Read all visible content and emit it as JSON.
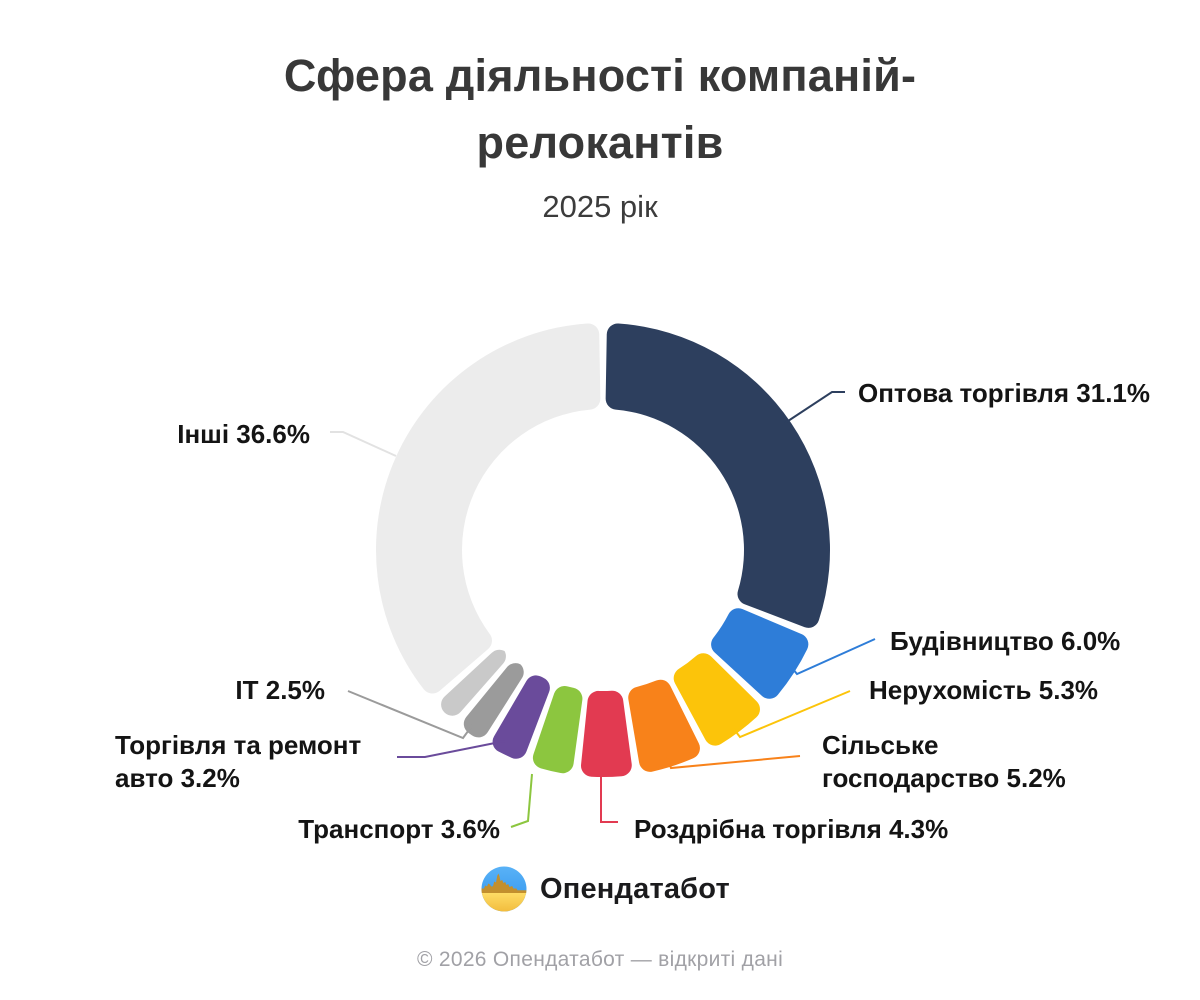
{
  "header": {
    "title": "Сфера діяльності компаній-релокантів",
    "subtitle": "2025 рік"
  },
  "chart_data": {
    "type": "pie",
    "variant": "donut",
    "title": "Сфера діяльності компаній-релокантів",
    "subtitle": "2025 рік",
    "unit": "%",
    "start_angle_deg": 0,
    "direction": "clockwise",
    "legend_position": "callout-labels",
    "segments": [
      {
        "label": "Оптова торгівля",
        "value": 31.1,
        "display": "Оптова торгівля 31.1%",
        "color": "#2d3f5e",
        "label_visible": true
      },
      {
        "label": "Будівництво",
        "value": 6.0,
        "display": "Будівництво 6.0%",
        "color": "#2e7dd8",
        "label_visible": true
      },
      {
        "label": "Нерухомість",
        "value": 5.3,
        "display": "Нерухомість 5.3%",
        "color": "#fcc40a",
        "label_visible": true
      },
      {
        "label": "Сільське господарство",
        "value": 5.2,
        "display": "Сільське господарство 5.2%",
        "color": "#f8821a",
        "label_visible": true
      },
      {
        "label": "Роздрібна торгівля",
        "value": 4.3,
        "display": "Роздрібна торгівля 4.3%",
        "color": "#e23a51",
        "label_visible": true
      },
      {
        "label": "Транспорт",
        "value": 3.6,
        "display": "Транспорт 3.6%",
        "color": "#8cc63f",
        "label_visible": true
      },
      {
        "label": "Торгівля та ремонт авто",
        "value": 3.2,
        "display": "Торгівля та ремонт авто 3.2%",
        "color": "#6a4b9b",
        "label_visible": true
      },
      {
        "label": "ІТ",
        "value": 2.5,
        "display": "ІТ 2.5%",
        "color": "#9b9b9b",
        "label_visible": true
      },
      {
        "label": "",
        "value": 2.2,
        "display": "",
        "color": "#c9c9c9",
        "label_visible": false
      },
      {
        "label": "Інші",
        "value": 36.6,
        "display": "Інші 36.6%",
        "color": "#ececec",
        "label_visible": true
      }
    ]
  },
  "logo": {
    "text": "Опендатабот"
  },
  "footer": {
    "copyright": "© 2026 Опендатабот — відкриті дані"
  }
}
